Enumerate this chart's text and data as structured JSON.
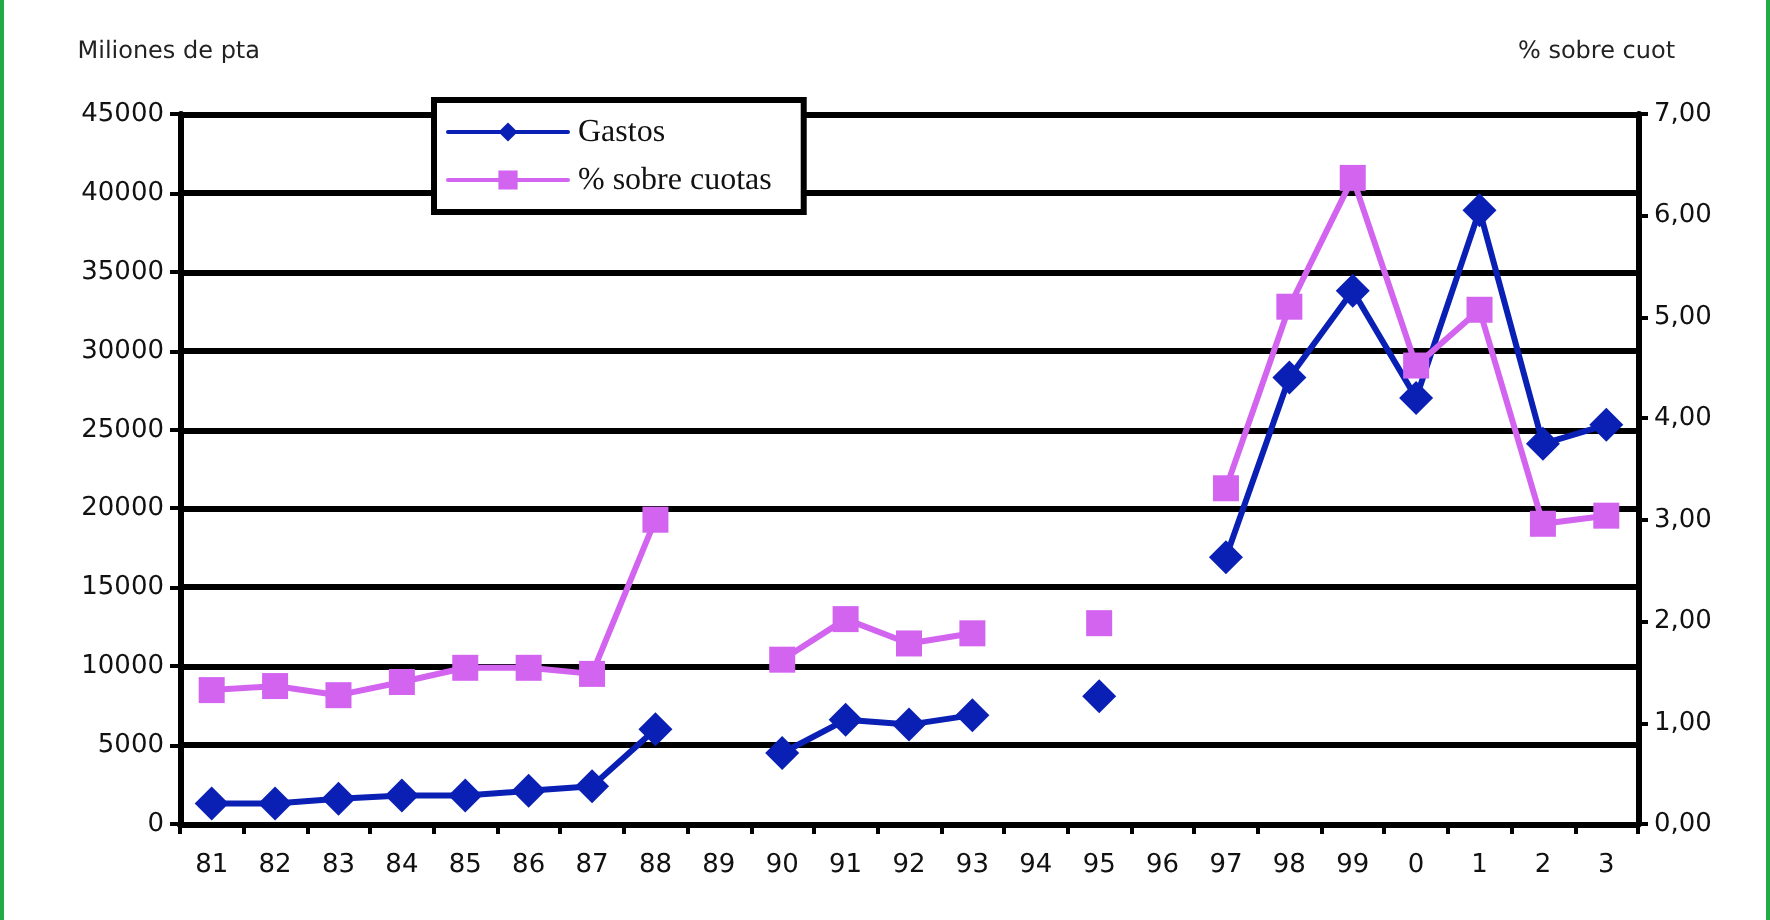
{
  "chart_data": {
    "type": "line",
    "ylabel": "Miliones de pta",
    "y2label": "% sobre cuot",
    "categories": [
      "81",
      "82",
      "83",
      "84",
      "85",
      "86",
      "87",
      "88",
      "89",
      "90",
      "91",
      "92",
      "93",
      "94",
      "95",
      "96",
      "97",
      "98",
      "99",
      "0",
      "1",
      "2",
      "3"
    ],
    "series": [
      {
        "name": "Gastos",
        "color": "#0a1fb4",
        "marker": "diamond",
        "values": [
          1300,
          1300,
          1600,
          1800,
          1800,
          2100,
          2400,
          6000,
          null,
          4500,
          6600,
          6300,
          6900,
          null,
          8100,
          null,
          16900,
          28300,
          33800,
          27000,
          38900,
          24100,
          25300
        ]
      },
      {
        "name": "% sobre cuotas",
        "color": "#d264f0",
        "marker": "square",
        "axis": "y2",
        "values": [
          1.32,
          1.36,
          1.27,
          1.4,
          1.54,
          1.54,
          1.48,
          3.0,
          null,
          1.62,
          2.02,
          1.78,
          1.88,
          null,
          1.98,
          null,
          3.31,
          5.1,
          6.37,
          4.52,
          5.07,
          2.96,
          3.04
        ]
      }
    ],
    "ylim": [
      0,
      45000
    ],
    "yticks": [
      0,
      5000,
      10000,
      15000,
      20000,
      25000,
      30000,
      35000,
      40000,
      45000
    ],
    "y2lim": [
      0,
      7
    ],
    "y2ticks": [
      {
        "value": 0,
        "label": "0,00"
      },
      {
        "value": 1,
        "label": "1,00"
      },
      {
        "value": 2,
        "label": "2,00"
      },
      {
        "value": 3,
        "label": "3,00"
      },
      {
        "value": 4,
        "label": "4,00"
      },
      {
        "value": 5,
        "label": "5,00"
      },
      {
        "value": 6,
        "label": "6,00"
      },
      {
        "value": 7,
        "label": "7,00"
      }
    ],
    "grid": "y",
    "legend": "top",
    "line_style": "solid"
  }
}
